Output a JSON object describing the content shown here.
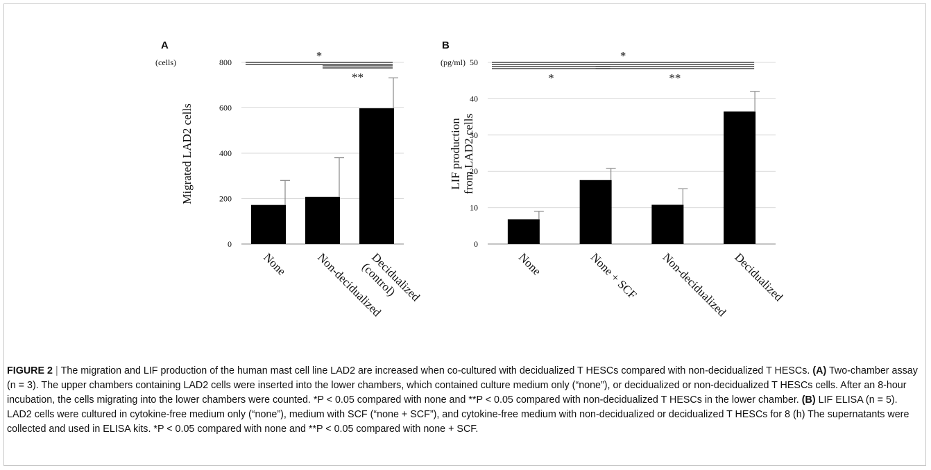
{
  "colors": {
    "bar": "#000000",
    "grid": "#d9d9d9",
    "axis": "#888888",
    "text": "#111111",
    "frame": "#c7c7c7"
  },
  "chart_data": [
    {
      "type": "bar",
      "panel_label": "A",
      "unit_label": "(cells)",
      "ylabel": "Migrated LAD2 cells",
      "ylim": [
        0,
        800
      ],
      "yticks": [
        0,
        200,
        400,
        600,
        800
      ],
      "categories": [
        "None",
        "Non-decidualized",
        "Decidualized (control)"
      ],
      "category_lines": [
        [
          "None"
        ],
        [
          "Non-decidualized"
        ],
        [
          "Decidualized",
          "(control)"
        ]
      ],
      "values": [
        172,
        208,
        598
      ],
      "errors": [
        108,
        172,
        134
      ],
      "grid": true,
      "significance": [
        {
          "from": 0,
          "to": 2,
          "label": "*"
        },
        {
          "from": 1,
          "to": 2,
          "label": "**"
        }
      ]
    },
    {
      "type": "bar",
      "panel_label": "B",
      "unit_label": "(pg/ml)",
      "ylabel_lines": [
        "LIF production",
        "from LAD2 cells"
      ],
      "ylim": [
        0,
        50
      ],
      "yticks": [
        0,
        10,
        20,
        30,
        40,
        50
      ],
      "categories": [
        "None",
        "None + SCF",
        "Non-decidualized",
        "Decidualized"
      ],
      "category_lines": [
        [
          "None"
        ],
        [
          "None + SCF"
        ],
        [
          "Non-decidualized"
        ],
        [
          "Decidualized"
        ]
      ],
      "values": [
        6.8,
        17.6,
        10.8,
        36.5
      ],
      "errors": [
        2.2,
        3.2,
        4.4,
        5.5
      ],
      "grid": true,
      "significance": [
        {
          "from": 0,
          "to": 3,
          "label": "*"
        },
        {
          "from": 0,
          "to": 1,
          "label": "*"
        },
        {
          "from": 1,
          "to": 3,
          "label": "**"
        }
      ]
    }
  ],
  "caption": {
    "figure_label": "FIGURE 2",
    "separator": "|",
    "title": "The migration and LIF production of the human mast cell line LAD2 are increased when co-cultured with decidualized T HESCs compared with non-decidualized T HESCs.",
    "a_tag": "(A)",
    "a_text": "Two-chamber assay (n = 3). The upper chambers containing LAD2 cells were inserted into the lower chambers, which contained culture medium only (“none”), or decidualized or non-decidualized T HESCs cells. After an 8-hour incubation, the cells migrating into the lower chambers were counted. *P < 0.05 compared with none and **P < 0.05 compared with non-decidualized T HESCs in the lower chamber.",
    "b_tag": "(B)",
    "b_text": "LIF ELISA (n = 5). LAD2 cells were cultured in cytokine-free medium only (“none”), medium with SCF (“none + SCF”), and cytokine-free medium with non-decidualized or decidualized T HESCs for 8 (h) The supernatants were collected and used in ELISA kits. *P < 0.05 compared with none and **P < 0.05 compared with none + SCF."
  }
}
